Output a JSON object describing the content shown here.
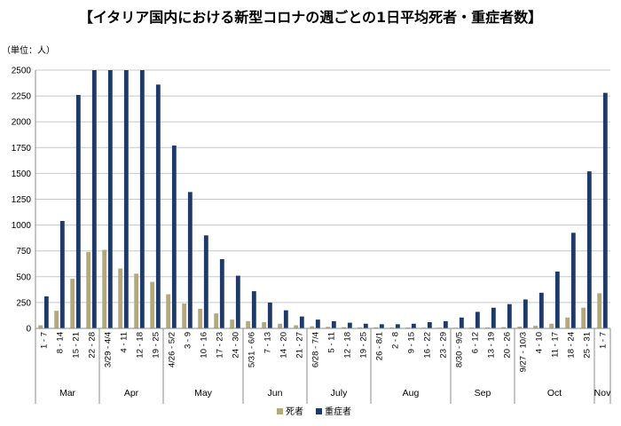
{
  "chart_data": {
    "type": "bar",
    "title": "【イタリア国内における新型コロナの週ごとの1日平均死者・重症者数】",
    "unit_label": "（単位：人）",
    "ylim": [
      0,
      2500
    ],
    "yticks": [
      "0",
      "250",
      "500",
      "750",
      "1000",
      "1250",
      "1500",
      "1750",
      "2000",
      "2250",
      "2500"
    ],
    "categories": [
      "1 - 7",
      "8 - 14",
      "15 - 21",
      "22 - 28",
      "3/29 - 4/4",
      "4 - 11",
      "12 - 18",
      "19 - 25",
      "4/26 - 5/2",
      "3 - 9",
      "10 - 16",
      "17 - 23",
      "24 - 30",
      "5/31 - 6/6",
      "7 - 13",
      "14 - 20",
      "21 - 27",
      "6/28 - 7/4",
      "5 - 11",
      "12 - 18",
      "19 - 25",
      "26 - 8/1",
      "2 - 8",
      "9 - 15",
      "16 - 22",
      "23 - 29",
      "8/30 - 9/5",
      "6 - 12",
      "13 - 19",
      "20 - 26",
      "9/27 - 10/3",
      "4 - 10",
      "11 - 17",
      "18 - 24",
      "25 - 31",
      "1 - 7"
    ],
    "series": [
      {
        "name": "死者",
        "color": "#b5a97a",
        "values": [
          30,
          170,
          480,
          740,
          760,
          580,
          530,
          450,
          330,
          240,
          190,
          145,
          85,
          70,
          60,
          45,
          30,
          20,
          15,
          12,
          10,
          10,
          8,
          8,
          7,
          7,
          7,
          8,
          9,
          12,
          17,
          25,
          45,
          105,
          200,
          340
        ]
      },
      {
        "name": "重症者",
        "color": "#1f3a68",
        "values": [
          310,
          1040,
          2260,
          2500,
          2500,
          2500,
          2500,
          2360,
          1770,
          1320,
          900,
          670,
          510,
          360,
          250,
          175,
          115,
          85,
          70,
          55,
          45,
          40,
          40,
          45,
          60,
          70,
          105,
          160,
          200,
          235,
          280,
          345,
          550,
          925,
          1520,
          2280
        ]
      }
    ],
    "months": [
      {
        "name": "Mar",
        "start": 0,
        "end": 3
      },
      {
        "name": "Apr",
        "start": 4,
        "end": 7
      },
      {
        "name": "May",
        "start": 8,
        "end": 12
      },
      {
        "name": "Jun",
        "start": 13,
        "end": 16
      },
      {
        "name": "July",
        "start": 17,
        "end": 20
      },
      {
        "name": "Aug",
        "start": 21,
        "end": 25
      },
      {
        "name": "Sep",
        "start": 26,
        "end": 29
      },
      {
        "name": "Oct",
        "start": 30,
        "end": 34
      },
      {
        "name": "Nov",
        "start": 35,
        "end": 35
      }
    ],
    "legend_position": "bottom-center"
  }
}
